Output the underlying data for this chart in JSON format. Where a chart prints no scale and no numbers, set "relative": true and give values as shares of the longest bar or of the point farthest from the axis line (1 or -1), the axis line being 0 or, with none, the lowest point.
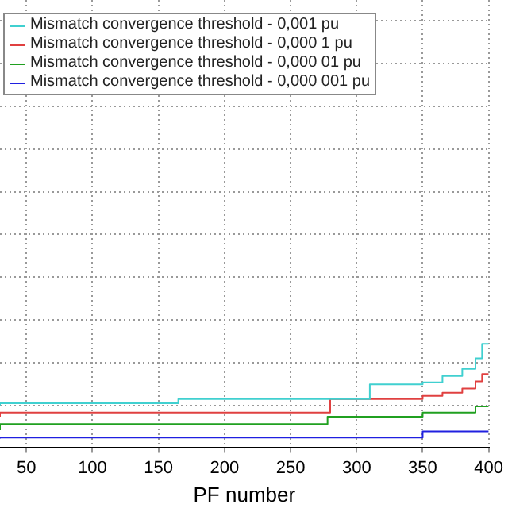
{
  "chart_data": {
    "type": "step",
    "relative": true,
    "xlabel": "PF number",
    "xlim": [
      30,
      400
    ],
    "xticks": [
      50,
      100,
      150,
      200,
      250,
      300,
      350,
      400
    ],
    "grid": true,
    "legend": "top left",
    "marker": "none",
    "series": [
      {
        "name": "Mismatch convergence threshold - 0,001 pu",
        "color": "#40d0d0",
        "x": [
          30,
          165,
          310,
          350,
          365,
          380,
          390,
          395,
          400
        ],
        "values": [
          0.41,
          0.43,
          0.47,
          0.61,
          0.63,
          0.69,
          0.76,
          0.86,
          1
        ]
      },
      {
        "name": "Mismatch convergence threshold - 0,000 1 pu",
        "color": "#e04040",
        "x": [
          30,
          280,
          350,
          365,
          380,
          390,
          395,
          400
        ],
        "values": [
          0.3,
          0.34,
          0.47,
          0.5,
          0.53,
          0.57,
          0.64,
          0.71
        ]
      },
      {
        "name": "Mismatch convergence threshold - 0,000 01 pu",
        "color": "#20a020",
        "x": [
          30,
          278,
          350,
          390,
          398,
          400
        ],
        "values": [
          0.17,
          0.23,
          0.3,
          0.34,
          0.4,
          0.4
        ]
      },
      {
        "name": "Mismatch convergence threshold - 0,000 001 pu",
        "color": "#2020e0",
        "x": [
          30,
          350,
          393,
          400
        ],
        "values": [
          0.09,
          0.1,
          0.16,
          0.16
        ]
      }
    ]
  }
}
